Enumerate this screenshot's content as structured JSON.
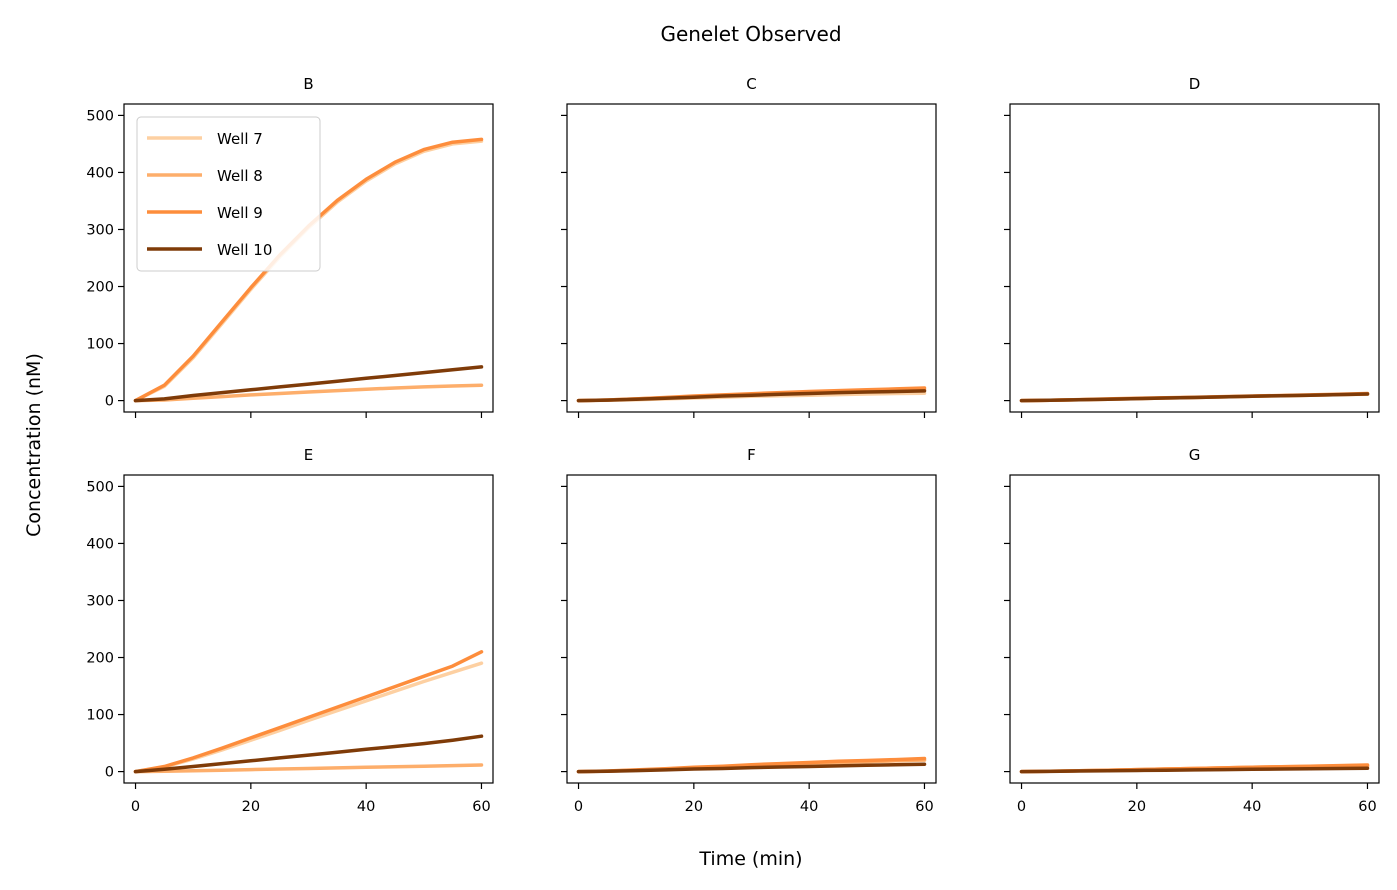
{
  "chart_data": {
    "type": "line",
    "title": "Genelet Observed",
    "xlabel": "Time (min)",
    "ylabel": "Concentration (nM)",
    "xlim": [
      -2,
      62
    ],
    "ylim": [
      -20,
      520
    ],
    "x_ticks": [
      0,
      20,
      40,
      60
    ],
    "y_ticks": [
      0,
      100,
      200,
      300,
      400,
      500
    ],
    "legend": {
      "placement": "upper-left",
      "panel": "B"
    },
    "series_styles": [
      {
        "name": "Well 7",
        "color": "#fdd0a2"
      },
      {
        "name": "Well 8",
        "color": "#fdae6b"
      },
      {
        "name": "Well 9",
        "color": "#fd8d3c"
      },
      {
        "name": "Well 10",
        "color": "#7f3b08"
      }
    ],
    "x": [
      0,
      5,
      10,
      15,
      20,
      25,
      30,
      35,
      40,
      45,
      50,
      55,
      60
    ],
    "panels": [
      {
        "title": "B",
        "series": [
          {
            "name": "Well 7",
            "values": [
              0,
              25,
              75,
              135,
              195,
              252,
              303,
              348,
              385,
              415,
              437,
              450,
              455
            ]
          },
          {
            "name": "Well 8",
            "values": [
              0,
              1,
              4,
              7,
              10,
              12.5,
              15,
              17.5,
              20,
              22,
              24,
              25.5,
              27
            ]
          },
          {
            "name": "Well 9",
            "values": [
              0,
              27,
              78,
              138,
              198,
              255,
              306,
              351,
              388,
              418,
              440,
              453,
              458
            ]
          },
          {
            "name": "Well 10",
            "values": [
              0,
              3,
              9,
              14,
              19,
              24,
              29,
              34,
              39,
              44,
              49,
              54,
              59
            ]
          }
        ]
      },
      {
        "title": "C",
        "series": [
          {
            "name": "Well 7",
            "values": [
              0,
              0.5,
              1.5,
              3,
              4.5,
              6,
              7.5,
              8.5,
              9.5,
              10.5,
              11.5,
              12.5,
              13
            ]
          },
          {
            "name": "Well 8",
            "values": [
              0,
              1,
              3,
              5,
              7,
              9,
              11,
              12.5,
              14,
              15.5,
              17,
              18,
              19
            ]
          },
          {
            "name": "Well 9",
            "values": [
              0,
              1,
              3,
              5.5,
              8,
              10,
              12,
              14,
              16,
              17.5,
              19,
              20.5,
              22
            ]
          },
          {
            "name": "Well 10",
            "values": [
              0,
              0.8,
              2.5,
              4,
              6,
              8,
              9.5,
              11,
              12.5,
              14,
              15,
              16,
              17
            ]
          }
        ]
      },
      {
        "title": "D",
        "series": [
          {
            "name": "Well 7",
            "values": [
              0,
              0.5,
              1.5,
              2.5,
              3.5,
              4.5,
              5.5,
              6.5,
              7.5,
              8.5,
              9.5,
              10.5,
              11
            ]
          },
          {
            "name": "Well 8",
            "values": [
              0,
              0.5,
              1.5,
              2.5,
              3.5,
              4.5,
              5.5,
              6.5,
              7.5,
              8.5,
              9.5,
              10.5,
              11.5
            ]
          },
          {
            "name": "Well 9",
            "values": [
              0,
              0.6,
              1.8,
              3,
              4,
              5,
              6,
              7,
              8,
              9,
              10,
              11,
              12.5
            ]
          },
          {
            "name": "Well 10",
            "values": [
              0,
              0.5,
              1.5,
              2.5,
              3.5,
              4.5,
              5.5,
              6.5,
              7.5,
              8.5,
              9.5,
              10.5,
              11.5
            ]
          }
        ]
      },
      {
        "title": "E",
        "series": [
          {
            "name": "Well 7",
            "values": [
              0,
              8,
              22,
              38,
              55,
              72,
              90,
              107,
              124,
              141,
              158,
              174,
              190
            ]
          },
          {
            "name": "Well 8",
            "values": [
              0,
              0.5,
              1.5,
              2.5,
              3.5,
              4.5,
              5.5,
              6.5,
              7.5,
              8.5,
              9.5,
              10.5,
              11.5
            ]
          },
          {
            "name": "Well 9",
            "values": [
              0,
              9,
              24,
              41,
              59,
              77,
              95,
              113,
              131,
              149,
              167,
              185,
              210
            ]
          },
          {
            "name": "Well 10",
            "values": [
              0,
              4,
              9,
              14,
              19,
              24,
              29,
              34,
              39,
              44,
              49,
              55,
              62
            ]
          }
        ]
      },
      {
        "title": "F",
        "series": [
          {
            "name": "Well 7",
            "values": [
              0,
              0.8,
              2.5,
              4.5,
              6.5,
              8.5,
              10.5,
              12.5,
              14.5,
              16,
              17.5,
              19,
              20
            ]
          },
          {
            "name": "Well 8",
            "values": [
              0,
              0.8,
              2.5,
              4.5,
              6.5,
              8.5,
              10.5,
              12.5,
              14.5,
              16,
              17.5,
              19,
              20.5
            ]
          },
          {
            "name": "Well 9",
            "values": [
              0,
              1,
              3,
              5,
              7.5,
              9.5,
              12,
              14,
              16,
              18,
              19.5,
              21,
              23
            ]
          },
          {
            "name": "Well 10",
            "values": [
              0,
              0.6,
              1.8,
              3,
              4.5,
              5.5,
              7,
              8,
              9,
              10,
              11,
              12,
              13
            ]
          }
        ]
      },
      {
        "title": "G",
        "series": [
          {
            "name": "Well 7",
            "values": [
              0,
              0.5,
              1.5,
              2.5,
              3.5,
              4.5,
              5.5,
              6.5,
              7.5,
              8.5,
              9.5,
              10,
              11
            ]
          },
          {
            "name": "Well 8",
            "values": [
              0,
              0.5,
              1.5,
              2.5,
              3.5,
              4.5,
              5.5,
              6.5,
              7.5,
              8,
              8.5,
              9,
              9.5
            ]
          },
          {
            "name": "Well 9",
            "values": [
              0,
              0.5,
              1.5,
              2.5,
              3.5,
              4.5,
              5.5,
              6.5,
              7.5,
              8.5,
              9.5,
              10.5,
              11.5
            ]
          },
          {
            "name": "Well 10",
            "values": [
              0,
              0.3,
              1,
              1.5,
              2,
              2.5,
              3,
              3.5,
              4,
              4.5,
              5,
              5.5,
              6
            ]
          }
        ]
      }
    ]
  }
}
